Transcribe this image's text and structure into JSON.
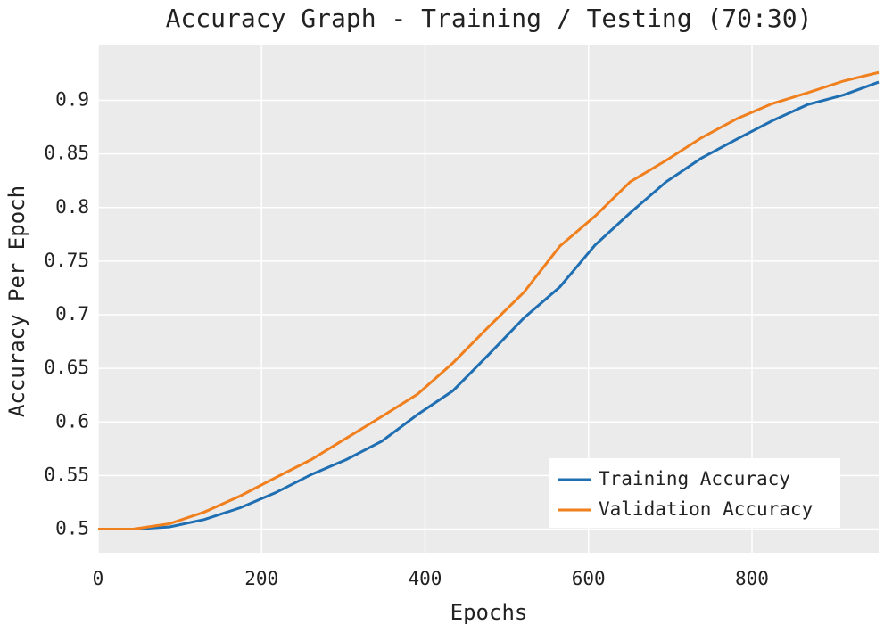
{
  "chart_data": {
    "type": "line",
    "title": "Accuracy Graph - Training / Testing (70:30)",
    "x_label": "Epochs",
    "y_label": "Accuracy Per Epoch",
    "x": [
      0,
      43,
      87,
      130,
      174,
      217,
      261,
      304,
      347,
      391,
      434,
      478,
      521,
      565,
      608,
      651,
      695,
      738,
      782,
      825,
      868,
      912,
      955
    ],
    "series": [
      {
        "name": "Training Accuracy",
        "color": "#1f6fb2",
        "values": [
          0.5,
          0.5,
          0.502,
          0.509,
          0.52,
          0.534,
          0.551,
          0.565,
          0.582,
          0.607,
          0.629,
          0.663,
          0.697,
          0.726,
          0.765,
          0.795,
          0.824,
          0.846,
          0.864,
          0.881,
          0.896,
          0.905,
          0.917
        ]
      },
      {
        "name": "Validation Accuracy",
        "color": "#f07f1e",
        "values": [
          0.5,
          0.5,
          0.505,
          0.516,
          0.531,
          0.548,
          0.565,
          0.585,
          0.605,
          0.626,
          0.655,
          0.689,
          0.721,
          0.764,
          0.792,
          0.824,
          0.844,
          0.865,
          0.883,
          0.897,
          0.907,
          0.918,
          0.926
        ]
      }
    ],
    "xlim": [
      0,
      955
    ],
    "ylim": [
      0.478,
      0.952
    ],
    "xticks": [
      0,
      200,
      400,
      600,
      800
    ],
    "yticks": [
      0.5,
      0.55,
      0.6,
      0.65,
      0.7,
      0.75,
      0.8,
      0.85,
      0.9
    ],
    "grid": true,
    "legend": "lower right"
  }
}
